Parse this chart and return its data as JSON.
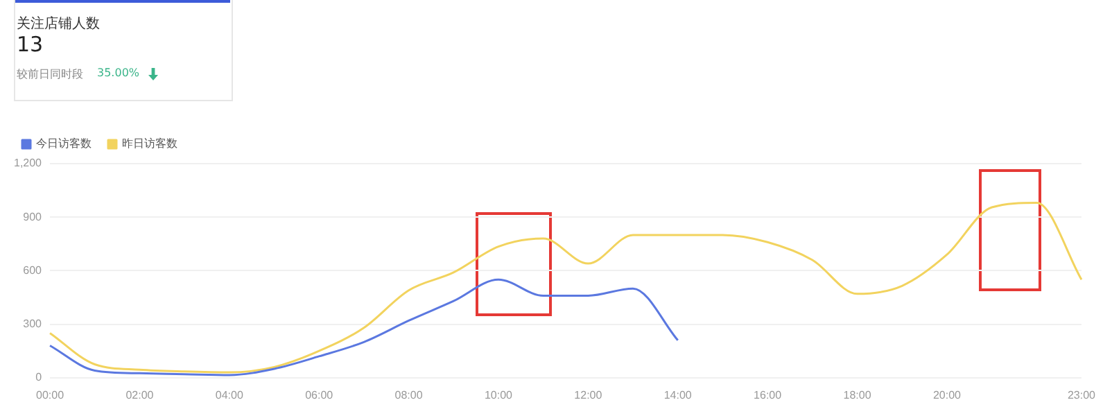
{
  "chart_data": {
    "type": "line",
    "annotations": [
      "关注店铺人数",
      "13",
      "较前日同时段",
      "35.00%"
    ],
    "categories": [
      "00:00",
      null,
      "02:00",
      null,
      "04:00",
      null,
      "06:00",
      null,
      "08:00",
      null,
      "10:00",
      null,
      "12:00",
      null,
      "14:00",
      null,
      "16:00",
      null,
      "18:00",
      null,
      "20:00",
      null,
      null,
      "23:00"
    ],
    "series": [
      {
        "name": "今日访客数",
        "color": "#5b78e0",
        "values": [
          180,
          40,
          25,
          20,
          15,
          50,
          120,
          200,
          320,
          430,
          550,
          460,
          460,
          500,
          210,
          null,
          null,
          null,
          null,
          null,
          null,
          null,
          null,
          null
        ]
      },
      {
        "name": "昨日访客数",
        "color": "#f2d35e",
        "values": [
          250,
          75,
          45,
          35,
          30,
          60,
          150,
          280,
          490,
          590,
          735,
          780,
          640,
          800,
          800,
          800,
          760,
          660,
          470,
          515,
          690,
          955,
          980,
          550
        ]
      }
    ],
    "ylim": [
      0,
      1200
    ],
    "yticks": [
      0,
      {
        "value": 300,
        "label": "300"
      },
      {
        "value": 600,
        "label": "600"
      },
      {
        "value": 900,
        "label": "900"
      },
      {
        "value": 1200,
        "label": "1,200"
      }
    ],
    "grid": "y",
    "legend": "top left",
    "marker": "none",
    "line_style": "solid"
  }
}
